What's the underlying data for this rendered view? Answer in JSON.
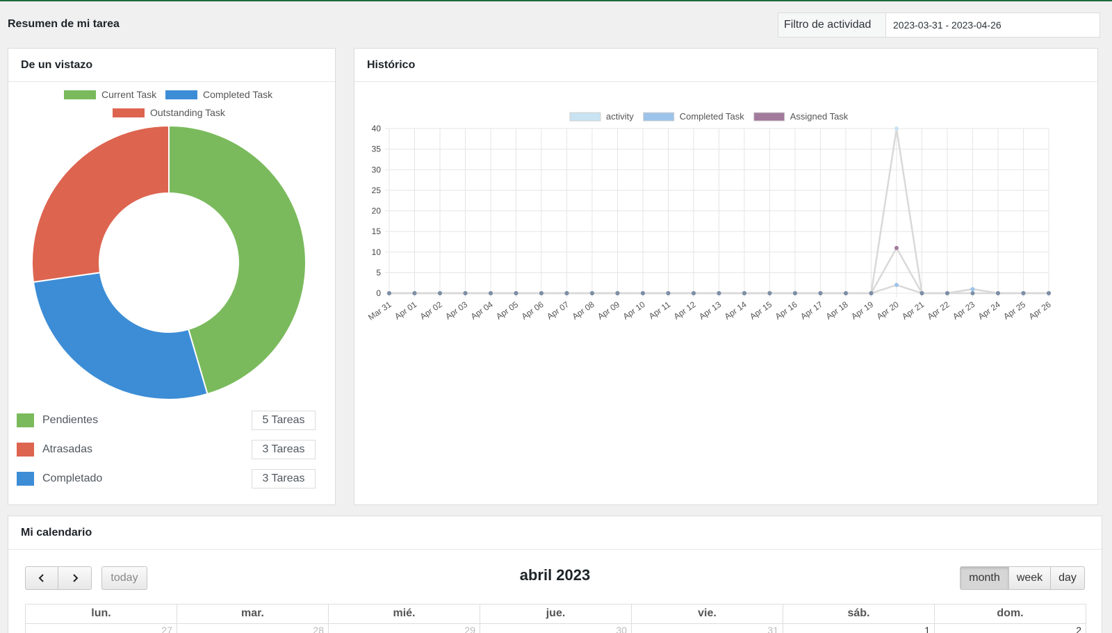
{
  "page": {
    "title": "Resumen de mi tarea"
  },
  "filter": {
    "label": "Filtro de actividad",
    "value": "2023-03-31 - 2023-04-26"
  },
  "glance": {
    "title": "De un vistazo",
    "legend": [
      {
        "label": "Current Task",
        "color": "#7aba5c"
      },
      {
        "label": "Completed Task",
        "color": "#3d8dd6"
      },
      {
        "label": "Outstanding Task",
        "color": "#dd644f"
      }
    ],
    "stats": [
      {
        "label": "Pendientes",
        "count": "5 Tareas",
        "color": "#7aba5c"
      },
      {
        "label": "Atrasadas",
        "count": "3 Tareas",
        "color": "#dd644f"
      },
      {
        "label": "Completado",
        "count": "3 Tareas",
        "color": "#3d8dd6"
      }
    ]
  },
  "history": {
    "title": "Histórico"
  },
  "calendar": {
    "title": "Mi calendario",
    "month_label": "abril 2023",
    "today_label": "today",
    "views": [
      "month",
      "week",
      "day"
    ],
    "active_view": "month",
    "weekdays": [
      "lun.",
      "mar.",
      "mié.",
      "jue.",
      "vie.",
      "sáb.",
      "dom."
    ],
    "first_row": [
      "27",
      "28",
      "29",
      "30",
      "31",
      "1",
      "2"
    ],
    "prev_icon": "chevron-left-icon",
    "next_icon": "chevron-right-icon"
  },
  "chart_data": [
    {
      "type": "pie",
      "variant": "doughnut",
      "categories": [
        "Current Task",
        "Completed Task",
        "Outstanding Task"
      ],
      "values": [
        5,
        3,
        3
      ],
      "colors": [
        "#7aba5c",
        "#3d8dd6",
        "#dd644f"
      ],
      "legend_position": "top"
    },
    {
      "type": "line",
      "x": [
        "Mar 31",
        "Apr 01",
        "Apr 02",
        "Apr 03",
        "Apr 04",
        "Apr 05",
        "Apr 06",
        "Apr 07",
        "Apr 08",
        "Apr 09",
        "Apr 10",
        "Apr 11",
        "Apr 12",
        "Apr 13",
        "Apr 14",
        "Apr 15",
        "Apr 16",
        "Apr 17",
        "Apr 18",
        "Apr 19",
        "Apr 20",
        "Apr 21",
        "Apr 22",
        "Apr 23",
        "Apr 24",
        "Apr 25",
        "Apr 26"
      ],
      "series": [
        {
          "name": "activity",
          "color": "#c9e3f2",
          "values": [
            0,
            0,
            0,
            0,
            0,
            0,
            0,
            0,
            0,
            0,
            0,
            0,
            0,
            0,
            0,
            0,
            0,
            0,
            0,
            0,
            40,
            0,
            0,
            1,
            0,
            0,
            0
          ]
        },
        {
          "name": "Completed Task",
          "color": "#9cc3ea",
          "values": [
            0,
            0,
            0,
            0,
            0,
            0,
            0,
            0,
            0,
            0,
            0,
            0,
            0,
            0,
            0,
            0,
            0,
            0,
            0,
            0,
            2,
            0,
            0,
            1,
            0,
            0,
            0
          ]
        },
        {
          "name": "Assigned Task",
          "color": "#a27a9c",
          "values": [
            0,
            0,
            0,
            0,
            0,
            0,
            0,
            0,
            0,
            0,
            0,
            0,
            0,
            0,
            0,
            0,
            0,
            0,
            0,
            0,
            11,
            0,
            0,
            0,
            0,
            0,
            0
          ]
        }
      ],
      "yticks": [
        0,
        5,
        10,
        15,
        20,
        25,
        30,
        35,
        40
      ],
      "ylim": [
        0,
        40
      ],
      "grid": true,
      "legend_position": "top"
    }
  ]
}
